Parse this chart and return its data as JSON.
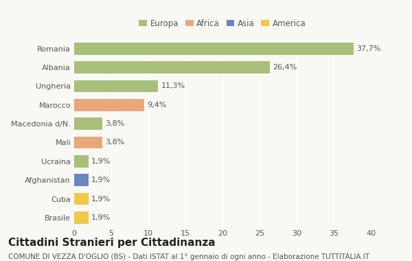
{
  "countries": [
    "Brasile",
    "Cuba",
    "Afghanistan",
    "Ucraina",
    "Mali",
    "Macedonia d/N.",
    "Marocco",
    "Ungheria",
    "Albania",
    "Romania"
  ],
  "values": [
    1.9,
    1.9,
    1.9,
    1.9,
    3.8,
    3.8,
    9.4,
    11.3,
    26.4,
    37.7
  ],
  "labels": [
    "1,9%",
    "1,9%",
    "1,9%",
    "1,9%",
    "3,8%",
    "3,8%",
    "9,4%",
    "11,3%",
    "26,4%",
    "37,7%"
  ],
  "colors": [
    "#f0c84a",
    "#f0c84a",
    "#6b86c0",
    "#a8c07a",
    "#e8a87a",
    "#a8c07a",
    "#e8a87a",
    "#a8c07a",
    "#a8c07a",
    "#a8c07a"
  ],
  "legend_labels": [
    "Europa",
    "Africa",
    "Asia",
    "America"
  ],
  "legend_colors": [
    "#a8c07a",
    "#e8a87a",
    "#6b86c0",
    "#f0c84a"
  ],
  "title": "Cittadini Stranieri per Cittadinanza",
  "subtitle": "COMUNE DI VEZZA D'OGLIO (BS) - Dati ISTAT al 1° gennaio di ogni anno - Elaborazione TUTTITALIA.IT",
  "xlim": [
    0,
    40
  ],
  "xticks": [
    0,
    5,
    10,
    15,
    20,
    25,
    30,
    35,
    40
  ],
  "background_color": "#f8f8f4",
  "bar_height": 0.65,
  "grid_color": "#ffffff",
  "title_fontsize": 11,
  "subtitle_fontsize": 7.5,
  "label_fontsize": 8,
  "tick_fontsize": 8,
  "legend_fontsize": 8.5
}
